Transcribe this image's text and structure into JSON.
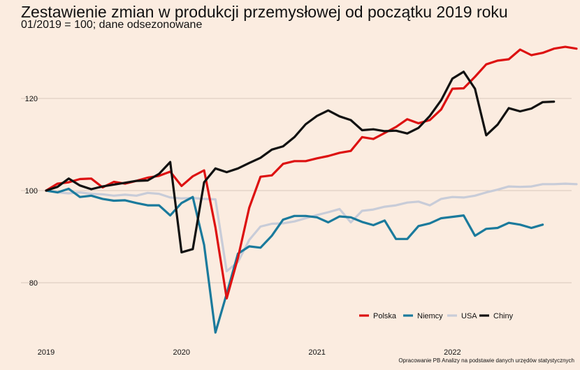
{
  "title": "Zestawienie zmian w produkcji przemysłowej od początku 2019 roku",
  "subtitle": "01/2019 = 100; dane odsezonowane",
  "caption": "Opracowanie PB Analizy na podstawie danych urzędów statystycznych",
  "colors": {
    "background": "#fbece0",
    "grid": "#d9c9bc",
    "Polska": "#dd1111",
    "Niemcy": "#1a7a9c",
    "USA": "#c8ccd8",
    "Chiny": "#111111"
  },
  "chart_data": {
    "type": "line",
    "title": "Zestawienie zmian w produkcji przemysłowej od początku 2019 roku",
    "subtitle": "01/2019 = 100; dane odsezonowane",
    "x_start": "2019-01",
    "x_step": "month",
    "x_ticks": [
      "2019",
      "2020",
      "2021",
      "2022"
    ],
    "y_ticks": [
      80,
      100,
      120
    ],
    "ylim": [
      68,
      135
    ],
    "grid": "horizontal",
    "legend_position": "bottom-right",
    "series": [
      {
        "name": "Polska",
        "values": [
          100.0,
          101.5,
          101.8,
          102.5,
          102.6,
          100.7,
          101.9,
          101.5,
          102.1,
          102.8,
          103.2,
          104.1,
          101.0,
          103.1,
          104.4,
          92.0,
          76.6,
          85.4,
          96.3,
          103.0,
          103.3,
          105.8,
          106.4,
          106.4,
          107.0,
          107.5,
          108.2,
          108.6,
          111.6,
          111.2,
          112.5,
          113.8,
          115.5,
          114.6,
          115.3,
          117.6,
          122.1,
          122.2,
          124.7,
          127.4,
          128.2,
          128.5,
          130.6,
          129.4,
          129.9,
          130.8,
          131.2,
          130.8
        ]
      },
      {
        "name": "Niemcy",
        "values": [
          100.0,
          99.6,
          100.4,
          98.6,
          98.9,
          98.2,
          97.8,
          97.9,
          97.3,
          96.8,
          96.8,
          94.6,
          97.3,
          98.6,
          88.2,
          69.2,
          77.6,
          86.3,
          87.9,
          87.6,
          90.2,
          93.7,
          94.5,
          94.5,
          94.2,
          93.1,
          94.4,
          94.2,
          93.2,
          92.5,
          93.5,
          89.5,
          89.5,
          92.3,
          92.9,
          94.0,
          94.3,
          94.6,
          90.2,
          91.7,
          91.9,
          93.0,
          92.6,
          91.9,
          92.6
        ]
      },
      {
        "name": "USA",
        "values": [
          100.0,
          99.6,
          99.4,
          99.6,
          99.3,
          99.2,
          98.9,
          99.1,
          98.9,
          99.5,
          99.3,
          98.5,
          98.3,
          98.4,
          98.2,
          98.1,
          82.5,
          84.5,
          89.3,
          92.2,
          92.8,
          92.9,
          93.3,
          94.0,
          94.7,
          95.3,
          96.0,
          93.1,
          95.6,
          95.9,
          96.5,
          96.8,
          97.4,
          97.6,
          96.8,
          98.2,
          98.6,
          98.5,
          98.9,
          99.6,
          100.2,
          100.9,
          100.8,
          100.9,
          101.4,
          101.4,
          101.5,
          101.4
        ]
      },
      {
        "name": "Chiny",
        "values": [
          100.0,
          100.8,
          102.6,
          101.1,
          100.3,
          100.9,
          101.3,
          101.7,
          102.1,
          102.2,
          103.6,
          106.2,
          86.6,
          87.3,
          101.8,
          104.8,
          104.0,
          104.8,
          106.0,
          107.1,
          108.9,
          109.6,
          111.6,
          114.4,
          116.2,
          117.4,
          116.1,
          115.3,
          113.1,
          113.3,
          112.9,
          113.0,
          112.4,
          113.6,
          116.2,
          119.6,
          124.3,
          125.8,
          122.1,
          112.0,
          114.3,
          117.9,
          117.2,
          117.8,
          119.2,
          119.3
        ]
      }
    ]
  }
}
